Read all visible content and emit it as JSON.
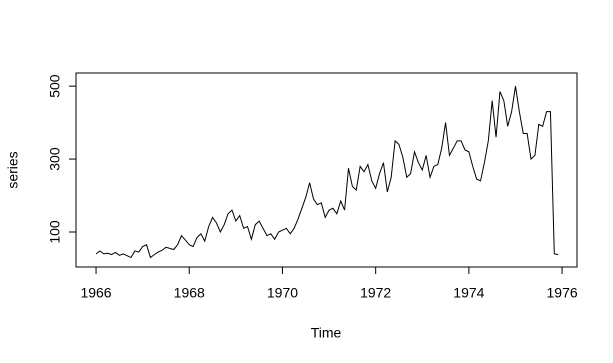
{
  "chart_data": {
    "type": "line",
    "xlabel": "Time",
    "ylabel": "series",
    "x": [
      1966,
      1966.083,
      1966.167,
      1966.25,
      1966.333,
      1966.417,
      1966.5,
      1966.583,
      1966.667,
      1966.75,
      1966.833,
      1966.917,
      1967,
      1967.083,
      1967.167,
      1967.25,
      1967.333,
      1967.417,
      1967.5,
      1967.583,
      1967.667,
      1967.75,
      1967.833,
      1967.917,
      1968,
      1968.083,
      1968.167,
      1968.25,
      1968.333,
      1968.417,
      1968.5,
      1968.583,
      1968.667,
      1968.75,
      1968.833,
      1968.917,
      1969,
      1969.083,
      1969.167,
      1969.25,
      1969.333,
      1969.417,
      1969.5,
      1969.583,
      1969.667,
      1969.75,
      1969.833,
      1969.917,
      1970,
      1970.083,
      1970.167,
      1970.25,
      1970.333,
      1970.417,
      1970.5,
      1970.583,
      1970.667,
      1970.75,
      1970.833,
      1970.917,
      1971,
      1971.083,
      1971.167,
      1971.25,
      1971.333,
      1971.417,
      1971.5,
      1971.583,
      1971.667,
      1971.75,
      1971.833,
      1971.917,
      1972,
      1972.083,
      1972.167,
      1972.25,
      1972.333,
      1972.417,
      1972.5,
      1972.583,
      1972.667,
      1972.75,
      1972.833,
      1972.917,
      1973,
      1973.083,
      1973.167,
      1973.25,
      1973.333,
      1973.417,
      1973.5,
      1973.583,
      1973.667,
      1973.75,
      1973.833,
      1973.917,
      1974,
      1974.083,
      1974.167,
      1974.25,
      1974.333,
      1974.417,
      1974.5,
      1974.583,
      1974.667,
      1974.75,
      1974.833,
      1974.917,
      1975,
      1975.083,
      1975.167,
      1975.25,
      1975.333,
      1975.417,
      1975.5,
      1975.583,
      1975.667,
      1975.75,
      1975.833,
      1975.917
    ],
    "series": [
      {
        "color": "#000000",
        "values": [
          40,
          48,
          40,
          42,
          38,
          44,
          36,
          40,
          35,
          30,
          48,
          45,
          60,
          65,
          30,
          38,
          45,
          50,
          58,
          55,
          52,
          65,
          90,
          78,
          65,
          60,
          85,
          95,
          75,
          115,
          140,
          125,
          100,
          120,
          150,
          160,
          130,
          145,
          110,
          115,
          80,
          120,
          130,
          110,
          90,
          95,
          80,
          100,
          105,
          110,
          95,
          110,
          135,
          165,
          195,
          235,
          190,
          175,
          180,
          140,
          160,
          165,
          150,
          185,
          160,
          275,
          225,
          215,
          280,
          265,
          285,
          240,
          220,
          260,
          290,
          210,
          250,
          350,
          340,
          305,
          250,
          260,
          320,
          290,
          270,
          310,
          250,
          280,
          285,
          330,
          400,
          310,
          330,
          350,
          350,
          325,
          320,
          280,
          245,
          240,
          290,
          350,
          460,
          360,
          485,
          460,
          390,
          430,
          500,
          430,
          370,
          370,
          300,
          310,
          395,
          390,
          430,
          430,
          40,
          38
        ]
      }
    ],
    "xlim": [
      1965.57,
      1976.32
    ],
    "ylim": [
      4,
      536
    ],
    "xticks": [
      1966,
      1968,
      1970,
      1972,
      1974,
      1976
    ],
    "yticks": [
      100,
      300,
      500
    ]
  }
}
